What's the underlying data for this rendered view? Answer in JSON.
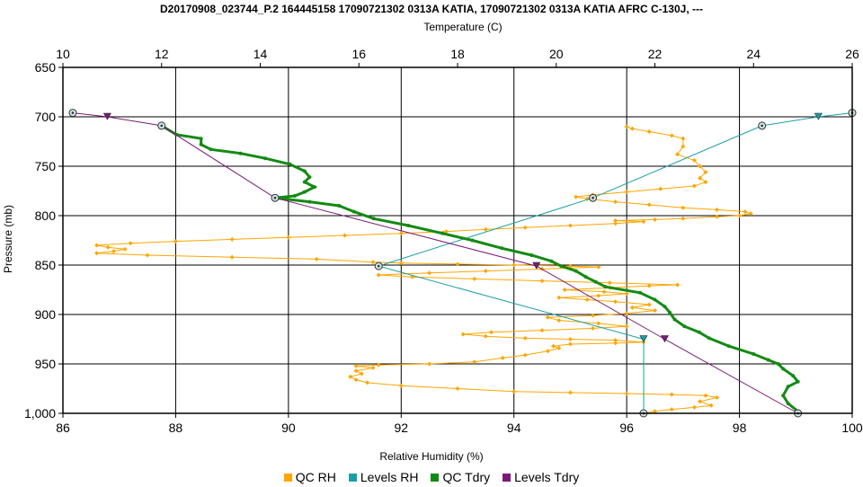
{
  "chart_data": {
    "type": "line",
    "title": "D20170908_023744_P.2 164445158 17090721302 0313A KATIA, 17090721302 0313A KATIA AFRC C-130J, ---",
    "xlabel": "Relative Humidity (%)",
    "x2label": "Temperature (C)",
    "ylabel": "Pressure (mb)",
    "xlim": [
      86,
      100
    ],
    "x2lim": [
      10,
      26
    ],
    "ylim": [
      650,
      1000
    ],
    "y_inverted": true,
    "x_ticks": [
      "86",
      "88",
      "90",
      "92",
      "94",
      "96",
      "98",
      "100"
    ],
    "x2_ticks": [
      "10",
      "12",
      "14",
      "16",
      "18",
      "20",
      "22",
      "24",
      "26"
    ],
    "y_ticks": [
      "650",
      "700",
      "750",
      "800",
      "850",
      "900",
      "950",
      "1,000"
    ],
    "grid": true,
    "legend_position": "bottom",
    "series": [
      {
        "name": "QC RH",
        "color": "#FFA500",
        "axis": "rh",
        "points": [
          [
            96.3,
            1000
          ],
          [
            96.5,
            998
          ],
          [
            96.8,
            996
          ],
          [
            97.2,
            994
          ],
          [
            97.5,
            992
          ],
          [
            97.3,
            988
          ],
          [
            97.6,
            984
          ],
          [
            97.4,
            982
          ],
          [
            96.8,
            981
          ],
          [
            96.0,
            980
          ],
          [
            95.0,
            979
          ],
          [
            94.0,
            978
          ],
          [
            93.0,
            975
          ],
          [
            92.0,
            972
          ],
          [
            91.4,
            969
          ],
          [
            91.2,
            966
          ],
          [
            91.1,
            963
          ],
          [
            91.3,
            960
          ],
          [
            91.2,
            957
          ],
          [
            91.5,
            954
          ],
          [
            91.2,
            952
          ],
          [
            91.6,
            951
          ],
          [
            92.5,
            950
          ],
          [
            93.3,
            948
          ],
          [
            93.8,
            944
          ],
          [
            94.2,
            941
          ],
          [
            94.6,
            937
          ],
          [
            94.8,
            934
          ],
          [
            94.7,
            932
          ],
          [
            95.0,
            930
          ],
          [
            95.8,
            929
          ],
          [
            96.3,
            928
          ],
          [
            95.8,
            926
          ],
          [
            95.0,
            925
          ],
          [
            94.2,
            924
          ],
          [
            93.5,
            922
          ],
          [
            93.1,
            920
          ],
          [
            93.6,
            918
          ],
          [
            94.5,
            916
          ],
          [
            95.4,
            914
          ],
          [
            96.0,
            912
          ],
          [
            95.5,
            909
          ],
          [
            94.8,
            906
          ],
          [
            94.6,
            903
          ],
          [
            95.4,
            901
          ],
          [
            96.0,
            899
          ],
          [
            96.5,
            896
          ],
          [
            96.1,
            893
          ],
          [
            96.4,
            890
          ],
          [
            95.8,
            887
          ],
          [
            95.3,
            885
          ],
          [
            94.8,
            883
          ],
          [
            95.5,
            881
          ],
          [
            96.0,
            879
          ],
          [
            95.6,
            877
          ],
          [
            94.9,
            875
          ],
          [
            95.7,
            873
          ],
          [
            96.4,
            871
          ],
          [
            96.9,
            870
          ],
          [
            95.7,
            868
          ],
          [
            94.5,
            866
          ],
          [
            93.3,
            864
          ],
          [
            92.2,
            862
          ],
          [
            91.6,
            860
          ],
          [
            92.5,
            858
          ],
          [
            93.5,
            856
          ],
          [
            94.5,
            854
          ],
          [
            95.5,
            852
          ],
          [
            95.0,
            851
          ],
          [
            94.0,
            850
          ],
          [
            93.0,
            849
          ],
          [
            92.0,
            848
          ],
          [
            91.5,
            847
          ],
          [
            90.5,
            844
          ],
          [
            89.0,
            842
          ],
          [
            87.5,
            840
          ],
          [
            86.6,
            838
          ],
          [
            86.9,
            836
          ],
          [
            87.1,
            834
          ],
          [
            86.8,
            832
          ],
          [
            86.6,
            830
          ],
          [
            87.2,
            828
          ],
          [
            88.0,
            826
          ],
          [
            89.0,
            824
          ],
          [
            90.0,
            822
          ],
          [
            91.0,
            820
          ],
          [
            92.0,
            818
          ],
          [
            92.8,
            816
          ],
          [
            93.5,
            814
          ],
          [
            94.2,
            812
          ],
          [
            95.0,
            810
          ],
          [
            95.8,
            808
          ],
          [
            96.3,
            806
          ],
          [
            95.8,
            805
          ],
          [
            96.5,
            804
          ],
          [
            97.0,
            803
          ],
          [
            97.6,
            801
          ],
          [
            98.0,
            800
          ],
          [
            98.2,
            798
          ],
          [
            98.1,
            796
          ],
          [
            97.6,
            794
          ],
          [
            97.0,
            792
          ],
          [
            96.4,
            789
          ],
          [
            95.8,
            786
          ],
          [
            95.3,
            783
          ],
          [
            95.1,
            781
          ],
          [
            95.4,
            779
          ],
          [
            96.0,
            776
          ],
          [
            96.6,
            773
          ],
          [
            97.2,
            770
          ],
          [
            97.4,
            766
          ],
          [
            97.3,
            762
          ],
          [
            97.4,
            756
          ],
          [
            97.3,
            750
          ],
          [
            97.2,
            744
          ],
          [
            96.9,
            738
          ],
          [
            97.0,
            730
          ],
          [
            97.0,
            722
          ],
          [
            96.8,
            719
          ],
          [
            96.4,
            715
          ],
          [
            96.1,
            712
          ],
          [
            96.0,
            710
          ]
        ]
      },
      {
        "name": "Levels RH",
        "color": "#1A9FA6",
        "axis": "rh",
        "points": [
          [
            100,
            696
          ],
          [
            99.4,
            700
          ],
          [
            98.4,
            709
          ],
          [
            95.4,
            782
          ],
          [
            91.6,
            851
          ],
          [
            96.3,
            925
          ],
          [
            96.3,
            1000
          ]
        ]
      },
      {
        "name": "QC Tdry",
        "color": "#138A13",
        "axis": "temp",
        "points": [
          [
            12.0,
            709
          ],
          [
            12.3,
            718
          ],
          [
            12.8,
            722
          ],
          [
            12.8,
            728
          ],
          [
            13.0,
            733
          ],
          [
            13.6,
            737
          ],
          [
            14.1,
            742
          ],
          [
            14.6,
            748
          ],
          [
            14.9,
            755
          ],
          [
            15.0,
            761
          ],
          [
            14.9,
            766
          ],
          [
            15.1,
            771
          ],
          [
            14.9,
            776
          ],
          [
            14.7,
            780
          ],
          [
            14.3,
            782
          ],
          [
            15.0,
            786
          ],
          [
            15.6,
            790
          ],
          [
            15.9,
            796
          ],
          [
            16.3,
            803
          ],
          [
            17.0,
            810
          ],
          [
            17.7,
            818
          ],
          [
            18.3,
            825
          ],
          [
            18.9,
            833
          ],
          [
            19.5,
            840
          ],
          [
            19.9,
            846
          ],
          [
            20.1,
            851
          ],
          [
            20.4,
            856
          ],
          [
            20.6,
            862
          ],
          [
            20.8,
            867
          ],
          [
            21.0,
            872
          ],
          [
            21.7,
            878
          ],
          [
            22.0,
            885
          ],
          [
            22.2,
            892
          ],
          [
            22.3,
            898
          ],
          [
            22.4,
            905
          ],
          [
            22.6,
            912
          ],
          [
            22.9,
            918
          ],
          [
            23.1,
            924
          ],
          [
            23.5,
            932
          ],
          [
            24.0,
            940
          ],
          [
            24.3,
            946
          ],
          [
            24.5,
            950
          ],
          [
            24.6,
            955
          ],
          [
            24.8,
            962
          ],
          [
            24.9,
            968
          ],
          [
            24.7,
            973
          ],
          [
            24.6,
            982
          ],
          [
            24.7,
            990
          ],
          [
            24.9,
            998
          ],
          [
            24.9,
            1000
          ]
        ]
      },
      {
        "name": "Levels Tdry",
        "color": "#7A1A7A",
        "axis": "temp",
        "points": [
          [
            10.2,
            696
          ],
          [
            10.9,
            700
          ],
          [
            12.0,
            709
          ],
          [
            14.3,
            782
          ],
          [
            19.6,
            851
          ],
          [
            22.2,
            925
          ],
          [
            24.9,
            1000
          ]
        ]
      }
    ],
    "level_points_rh": [
      [
        100,
        696
      ],
      [
        98.4,
        709
      ],
      [
        95.4,
        782
      ],
      [
        91.6,
        851
      ],
      [
        96.3,
        1000
      ]
    ],
    "level_triangles_rh": [
      [
        99.4,
        700
      ],
      [
        96.3,
        925
      ]
    ],
    "level_points_temp": [
      [
        10.2,
        696
      ],
      [
        12.0,
        709
      ],
      [
        14.3,
        782
      ],
      [
        24.9,
        1000
      ]
    ],
    "level_triangles_temp": [
      [
        10.9,
        700
      ],
      [
        19.6,
        851
      ],
      [
        22.2,
        925
      ]
    ]
  }
}
